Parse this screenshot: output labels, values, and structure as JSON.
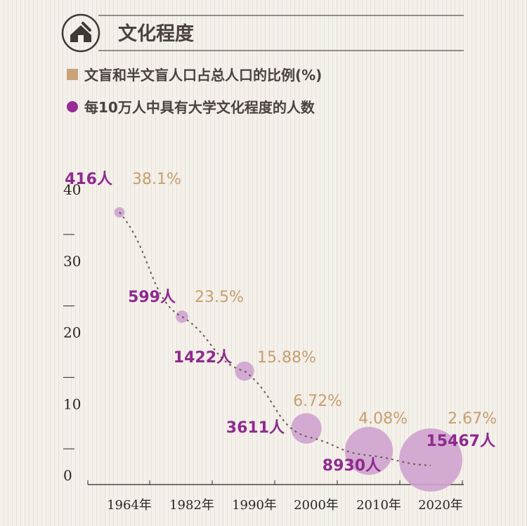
{
  "header": {
    "title": "文化程度",
    "icon": "house-pen-icon"
  },
  "legend": [
    {
      "label": "文盲和半文盲人口占总人口的比例(%)",
      "color": "#c9a47a",
      "marker": "square"
    },
    {
      "label": "每10万人中具有大学文化程度的人数",
      "color": "#9a2a96",
      "marker": "circle"
    }
  ],
  "colors": {
    "people_text": "#8e2a8e",
    "percent_text": "#c69f6f",
    "bubble_fill": "#cfa3cf",
    "trend_line": "#6b5a55"
  },
  "chart_data": {
    "type": "scatter",
    "categories": [
      "1964年",
      "1982年",
      "1990年",
      "2000年",
      "2010年",
      "2020年"
    ],
    "series": [
      {
        "name": "文盲和半文盲人口占总人口的比例(%)",
        "values": [
          38.1,
          23.5,
          15.88,
          6.72,
          4.08,
          2.67
        ],
        "labels": [
          "38.1%",
          "23.5%",
          "15.88%",
          "6.72%",
          "4.08%",
          "2.67%"
        ]
      },
      {
        "name": "每10万人中具有大学文化程度的人数",
        "values": [
          416,
          599,
          1422,
          3611,
          8930,
          15467
        ],
        "labels": [
          "416人",
          "599人",
          "1422人",
          "3611人",
          "8930人",
          "15467人"
        ]
      }
    ],
    "y_ticks": [
      "40",
      "30",
      "20",
      "10",
      "0"
    ],
    "ylim": [
      0,
      40
    ],
    "grid": false
  }
}
